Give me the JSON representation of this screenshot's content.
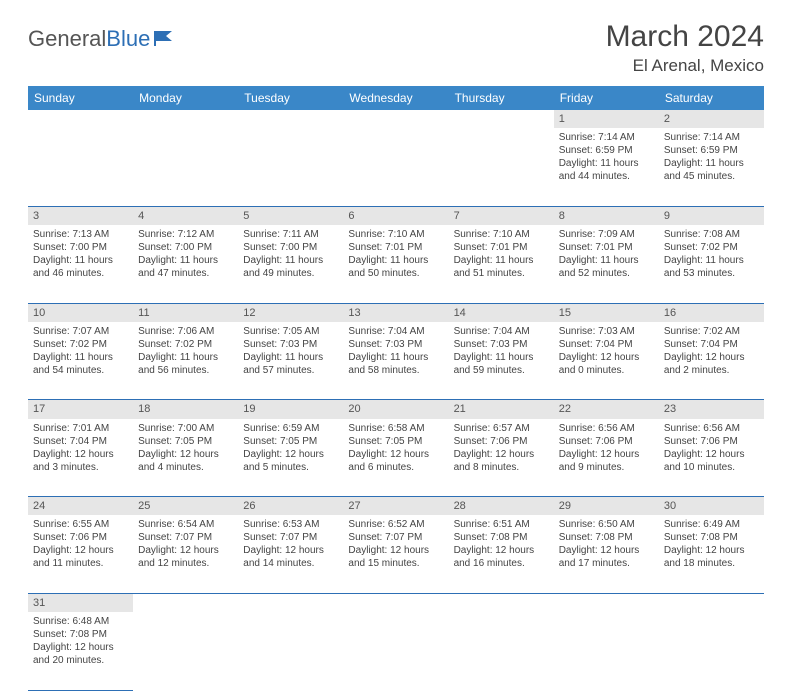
{
  "logo": {
    "part1": "General",
    "part2": "Blue"
  },
  "title": {
    "month": "March 2024",
    "location": "El Arenal, Mexico"
  },
  "weekdays": [
    "Sunday",
    "Monday",
    "Tuesday",
    "Wednesday",
    "Thursday",
    "Friday",
    "Saturday"
  ],
  "colors": {
    "header_bg": "#3a87c8",
    "rule": "#2d6fb5",
    "daynum_bg": "#e6e6e6"
  },
  "weeks": [
    [
      null,
      null,
      null,
      null,
      null,
      {
        "n": "1",
        "r": "Sunrise: 7:14 AM",
        "s": "Sunset: 6:59 PM",
        "d": "Daylight: 11 hours and 44 minutes."
      },
      {
        "n": "2",
        "r": "Sunrise: 7:14 AM",
        "s": "Sunset: 6:59 PM",
        "d": "Daylight: 11 hours and 45 minutes."
      }
    ],
    [
      {
        "n": "3",
        "r": "Sunrise: 7:13 AM",
        "s": "Sunset: 7:00 PM",
        "d": "Daylight: 11 hours and 46 minutes."
      },
      {
        "n": "4",
        "r": "Sunrise: 7:12 AM",
        "s": "Sunset: 7:00 PM",
        "d": "Daylight: 11 hours and 47 minutes."
      },
      {
        "n": "5",
        "r": "Sunrise: 7:11 AM",
        "s": "Sunset: 7:00 PM",
        "d": "Daylight: 11 hours and 49 minutes."
      },
      {
        "n": "6",
        "r": "Sunrise: 7:10 AM",
        "s": "Sunset: 7:01 PM",
        "d": "Daylight: 11 hours and 50 minutes."
      },
      {
        "n": "7",
        "r": "Sunrise: 7:10 AM",
        "s": "Sunset: 7:01 PM",
        "d": "Daylight: 11 hours and 51 minutes."
      },
      {
        "n": "8",
        "r": "Sunrise: 7:09 AM",
        "s": "Sunset: 7:01 PM",
        "d": "Daylight: 11 hours and 52 minutes."
      },
      {
        "n": "9",
        "r": "Sunrise: 7:08 AM",
        "s": "Sunset: 7:02 PM",
        "d": "Daylight: 11 hours and 53 minutes."
      }
    ],
    [
      {
        "n": "10",
        "r": "Sunrise: 7:07 AM",
        "s": "Sunset: 7:02 PM",
        "d": "Daylight: 11 hours and 54 minutes."
      },
      {
        "n": "11",
        "r": "Sunrise: 7:06 AM",
        "s": "Sunset: 7:02 PM",
        "d": "Daylight: 11 hours and 56 minutes."
      },
      {
        "n": "12",
        "r": "Sunrise: 7:05 AM",
        "s": "Sunset: 7:03 PM",
        "d": "Daylight: 11 hours and 57 minutes."
      },
      {
        "n": "13",
        "r": "Sunrise: 7:04 AM",
        "s": "Sunset: 7:03 PM",
        "d": "Daylight: 11 hours and 58 minutes."
      },
      {
        "n": "14",
        "r": "Sunrise: 7:04 AM",
        "s": "Sunset: 7:03 PM",
        "d": "Daylight: 11 hours and 59 minutes."
      },
      {
        "n": "15",
        "r": "Sunrise: 7:03 AM",
        "s": "Sunset: 7:04 PM",
        "d": "Daylight: 12 hours and 0 minutes."
      },
      {
        "n": "16",
        "r": "Sunrise: 7:02 AM",
        "s": "Sunset: 7:04 PM",
        "d": "Daylight: 12 hours and 2 minutes."
      }
    ],
    [
      {
        "n": "17",
        "r": "Sunrise: 7:01 AM",
        "s": "Sunset: 7:04 PM",
        "d": "Daylight: 12 hours and 3 minutes."
      },
      {
        "n": "18",
        "r": "Sunrise: 7:00 AM",
        "s": "Sunset: 7:05 PM",
        "d": "Daylight: 12 hours and 4 minutes."
      },
      {
        "n": "19",
        "r": "Sunrise: 6:59 AM",
        "s": "Sunset: 7:05 PM",
        "d": "Daylight: 12 hours and 5 minutes."
      },
      {
        "n": "20",
        "r": "Sunrise: 6:58 AM",
        "s": "Sunset: 7:05 PM",
        "d": "Daylight: 12 hours and 6 minutes."
      },
      {
        "n": "21",
        "r": "Sunrise: 6:57 AM",
        "s": "Sunset: 7:06 PM",
        "d": "Daylight: 12 hours and 8 minutes."
      },
      {
        "n": "22",
        "r": "Sunrise: 6:56 AM",
        "s": "Sunset: 7:06 PM",
        "d": "Daylight: 12 hours and 9 minutes."
      },
      {
        "n": "23",
        "r": "Sunrise: 6:56 AM",
        "s": "Sunset: 7:06 PM",
        "d": "Daylight: 12 hours and 10 minutes."
      }
    ],
    [
      {
        "n": "24",
        "r": "Sunrise: 6:55 AM",
        "s": "Sunset: 7:06 PM",
        "d": "Daylight: 12 hours and 11 minutes."
      },
      {
        "n": "25",
        "r": "Sunrise: 6:54 AM",
        "s": "Sunset: 7:07 PM",
        "d": "Daylight: 12 hours and 12 minutes."
      },
      {
        "n": "26",
        "r": "Sunrise: 6:53 AM",
        "s": "Sunset: 7:07 PM",
        "d": "Daylight: 12 hours and 14 minutes."
      },
      {
        "n": "27",
        "r": "Sunrise: 6:52 AM",
        "s": "Sunset: 7:07 PM",
        "d": "Daylight: 12 hours and 15 minutes."
      },
      {
        "n": "28",
        "r": "Sunrise: 6:51 AM",
        "s": "Sunset: 7:08 PM",
        "d": "Daylight: 12 hours and 16 minutes."
      },
      {
        "n": "29",
        "r": "Sunrise: 6:50 AM",
        "s": "Sunset: 7:08 PM",
        "d": "Daylight: 12 hours and 17 minutes."
      },
      {
        "n": "30",
        "r": "Sunrise: 6:49 AM",
        "s": "Sunset: 7:08 PM",
        "d": "Daylight: 12 hours and 18 minutes."
      }
    ],
    [
      {
        "n": "31",
        "r": "Sunrise: 6:48 AM",
        "s": "Sunset: 7:08 PM",
        "d": "Daylight: 12 hours and 20 minutes."
      },
      null,
      null,
      null,
      null,
      null,
      null
    ]
  ]
}
